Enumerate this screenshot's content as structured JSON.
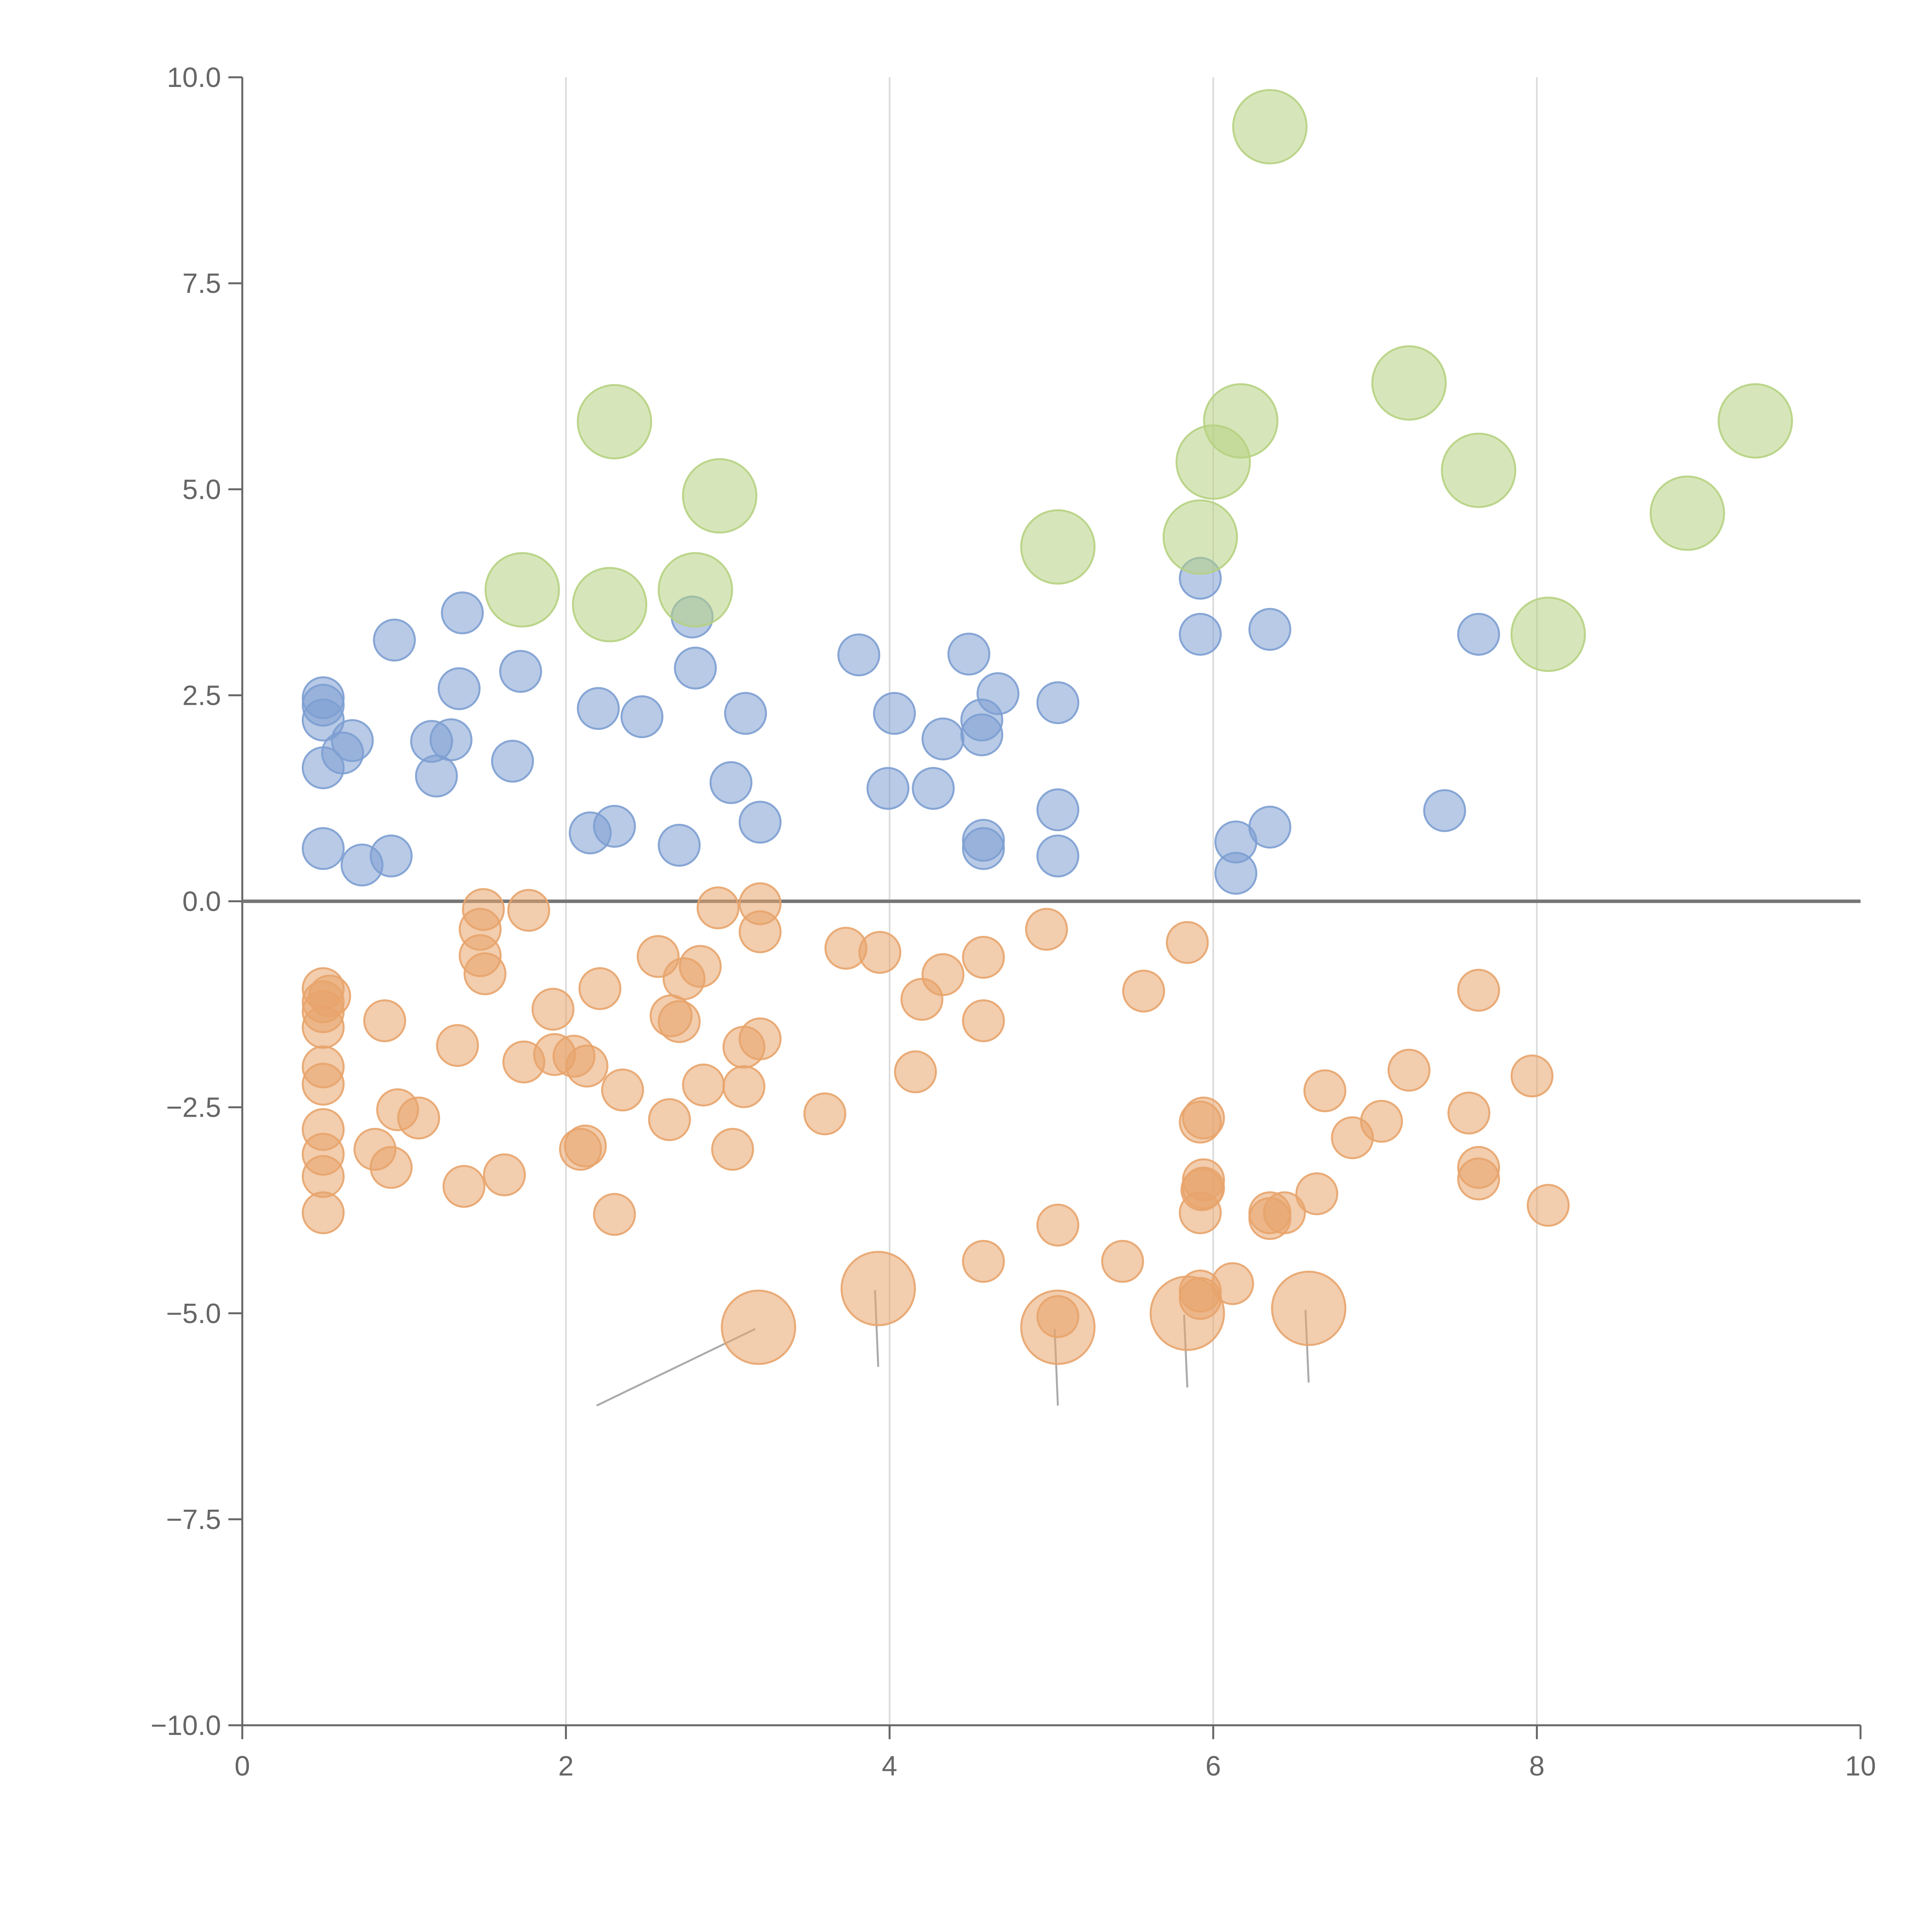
{
  "chart_data": {
    "type": "scatter",
    "title": "",
    "xlabel": "",
    "ylabel": "",
    "xlim": [
      0,
      10
    ],
    "ylim": [
      -10,
      10
    ],
    "x_ticks": [
      "0",
      "2",
      "4",
      "6",
      "8",
      "10"
    ],
    "y_ticks": [
      "10.0",
      "7.5",
      "5.0",
      "2.5",
      "0.0",
      "−2.5",
      "−5.0",
      "−7.5",
      "−10.0"
    ],
    "x_grid": [
      2,
      4,
      6,
      8
    ],
    "zero_line": 0,
    "colors": {
      "blue": "#7d9fd1",
      "orange": "#e8a46c",
      "green": "#b6d282",
      "axis": "#666666",
      "grid": "#d9d9d9",
      "zero": "#777777",
      "leader": "#aaaaaa"
    },
    "series": [
      {
        "name": "blue",
        "color": "#7d9fd1",
        "size": "small",
        "points": [
          [
            0.5,
            2.47
          ],
          [
            0.5,
            2.38
          ],
          [
            0.5,
            2.2
          ],
          [
            0.5,
            1.62
          ],
          [
            0.5,
            0.64
          ],
          [
            0.62,
            1.8
          ],
          [
            0.68,
            1.95
          ],
          [
            0.74,
            0.44
          ],
          [
            0.92,
            0.55
          ],
          [
            0.94,
            3.17
          ],
          [
            1.17,
            1.94
          ],
          [
            1.2,
            1.52
          ],
          [
            1.29,
            1.96
          ],
          [
            1.34,
            2.58
          ],
          [
            1.36,
            3.5
          ],
          [
            1.67,
            1.7
          ],
          [
            1.72,
            2.79
          ],
          [
            2.15,
            0.83
          ],
          [
            2.2,
            2.34
          ],
          [
            2.3,
            0.91
          ],
          [
            2.47,
            2.24
          ],
          [
            2.7,
            0.68
          ],
          [
            2.78,
            3.45
          ],
          [
            2.8,
            2.83
          ],
          [
            3.02,
            1.44
          ],
          [
            3.11,
            2.28
          ],
          [
            3.2,
            0.96
          ],
          [
            3.81,
            2.99
          ],
          [
            3.99,
            1.37
          ],
          [
            4.03,
            2.28
          ],
          [
            4.27,
            1.37
          ],
          [
            4.33,
            1.97
          ],
          [
            4.49,
            3.0
          ],
          [
            4.57,
            2.2
          ],
          [
            4.57,
            2.02
          ],
          [
            4.58,
            0.74
          ],
          [
            4.58,
            0.64
          ],
          [
            4.67,
            2.52
          ],
          [
            5.04,
            2.41
          ],
          [
            5.04,
            1.11
          ],
          [
            5.04,
            0.55
          ],
          [
            5.92,
            3.92
          ],
          [
            5.92,
            3.24
          ],
          [
            6.14,
            0.72
          ],
          [
            6.14,
            0.34
          ],
          [
            6.35,
            3.3
          ],
          [
            6.35,
            0.9
          ],
          [
            7.43,
            1.1
          ],
          [
            7.64,
            3.24
          ]
        ]
      },
      {
        "name": "orange",
        "color": "#e8a46c",
        "size": "small",
        "points": [
          [
            0.5,
            -1.06
          ],
          [
            0.5,
            -1.22
          ],
          [
            0.5,
            -1.34
          ],
          [
            0.5,
            -1.53
          ],
          [
            0.5,
            -2.01
          ],
          [
            0.5,
            -2.22
          ],
          [
            0.5,
            -2.77
          ],
          [
            0.5,
            -3.07
          ],
          [
            0.5,
            -3.34
          ],
          [
            0.5,
            -3.78
          ],
          [
            0.54,
            -1.15
          ],
          [
            0.82,
            -3.01
          ],
          [
            0.88,
            -1.45
          ],
          [
            0.92,
            -3.23
          ],
          [
            0.96,
            -2.53
          ],
          [
            1.09,
            -2.63
          ],
          [
            1.33,
            -1.75
          ],
          [
            1.37,
            -3.46
          ],
          [
            1.47,
            -0.34
          ],
          [
            1.49,
            -0.1
          ],
          [
            1.47,
            -0.66
          ],
          [
            1.5,
            -0.88
          ],
          [
            1.62,
            -3.32
          ],
          [
            1.74,
            -1.95
          ],
          [
            1.77,
            -0.11
          ],
          [
            1.92,
            -1.31
          ],
          [
            1.93,
            -1.86
          ],
          [
            2.05,
            -1.88
          ],
          [
            2.09,
            -3.01
          ],
          [
            2.12,
            -2.97
          ],
          [
            2.13,
            -2.0
          ],
          [
            2.21,
            -1.06
          ],
          [
            2.3,
            -3.8
          ],
          [
            2.35,
            -2.29
          ],
          [
            2.57,
            -0.67
          ],
          [
            2.65,
            -1.39
          ],
          [
            2.64,
            -2.65
          ],
          [
            2.7,
            -1.46
          ],
          [
            2.73,
            -0.94
          ],
          [
            2.83,
            -0.79
          ],
          [
            2.85,
            -2.23
          ],
          [
            2.94,
            -0.08
          ],
          [
            3.03,
            -3.01
          ],
          [
            3.1,
            -1.77
          ],
          [
            3.1,
            -2.25
          ],
          [
            3.2,
            -1.67
          ],
          [
            3.2,
            -0.37
          ],
          [
            3.2,
            -0.03
          ],
          [
            3.6,
            -2.58
          ],
          [
            3.73,
            -0.57
          ],
          [
            3.94,
            -0.62
          ],
          [
            4.16,
            -2.07
          ],
          [
            4.2,
            -1.19
          ],
          [
            4.33,
            -0.89
          ],
          [
            4.58,
            -0.68
          ],
          [
            4.58,
            -1.45
          ],
          [
            4.58,
            -4.37
          ],
          [
            4.97,
            -0.34
          ],
          [
            5.04,
            -3.93
          ],
          [
            5.04,
            -5.04
          ],
          [
            5.44,
            -4.37
          ],
          [
            5.57,
            -1.09
          ],
          [
            5.84,
            -0.5
          ],
          [
            5.92,
            -2.68
          ],
          [
            5.92,
            -3.78
          ],
          [
            5.93,
            -3.5
          ],
          [
            5.94,
            -2.63
          ],
          [
            5.94,
            -3.38
          ],
          [
            5.94,
            -3.48
          ],
          [
            5.92,
            -4.73
          ],
          [
            5.92,
            -4.82
          ],
          [
            6.12,
            -4.64
          ],
          [
            6.35,
            -3.78
          ],
          [
            6.35,
            -3.85
          ],
          [
            6.44,
            -3.78
          ],
          [
            6.64,
            -3.55
          ],
          [
            6.69,
            -2.3
          ],
          [
            6.86,
            -2.87
          ],
          [
            7.04,
            -2.67
          ],
          [
            7.21,
            -2.05
          ],
          [
            7.58,
            -2.57
          ],
          [
            7.64,
            -1.08
          ],
          [
            7.64,
            -3.23
          ],
          [
            7.64,
            -3.37
          ],
          [
            7.97,
            -2.12
          ],
          [
            8.07,
            -3.69
          ]
        ]
      },
      {
        "name": "orange-large",
        "color": "#e8a46c",
        "size": "large",
        "points": [
          [
            3.19,
            -5.17
          ],
          [
            3.93,
            -4.7
          ],
          [
            5.04,
            -5.17
          ],
          [
            5.84,
            -5.0
          ],
          [
            6.59,
            -4.94
          ]
        ]
      },
      {
        "name": "green",
        "color": "#b6d282",
        "size": "large",
        "points": [
          [
            1.73,
            3.78
          ],
          [
            2.27,
            3.6
          ],
          [
            2.3,
            5.82
          ],
          [
            2.8,
            3.78
          ],
          [
            2.95,
            4.92
          ],
          [
            5.04,
            4.3
          ],
          [
            5.92,
            4.42
          ],
          [
            6.0,
            5.33
          ],
          [
            6.17,
            5.83
          ],
          [
            6.35,
            9.4
          ],
          [
            7.21,
            6.29
          ],
          [
            7.64,
            5.23
          ],
          [
            8.07,
            3.24
          ],
          [
            8.93,
            4.71
          ],
          [
            9.35,
            5.83
          ]
        ]
      }
    ]
  }
}
